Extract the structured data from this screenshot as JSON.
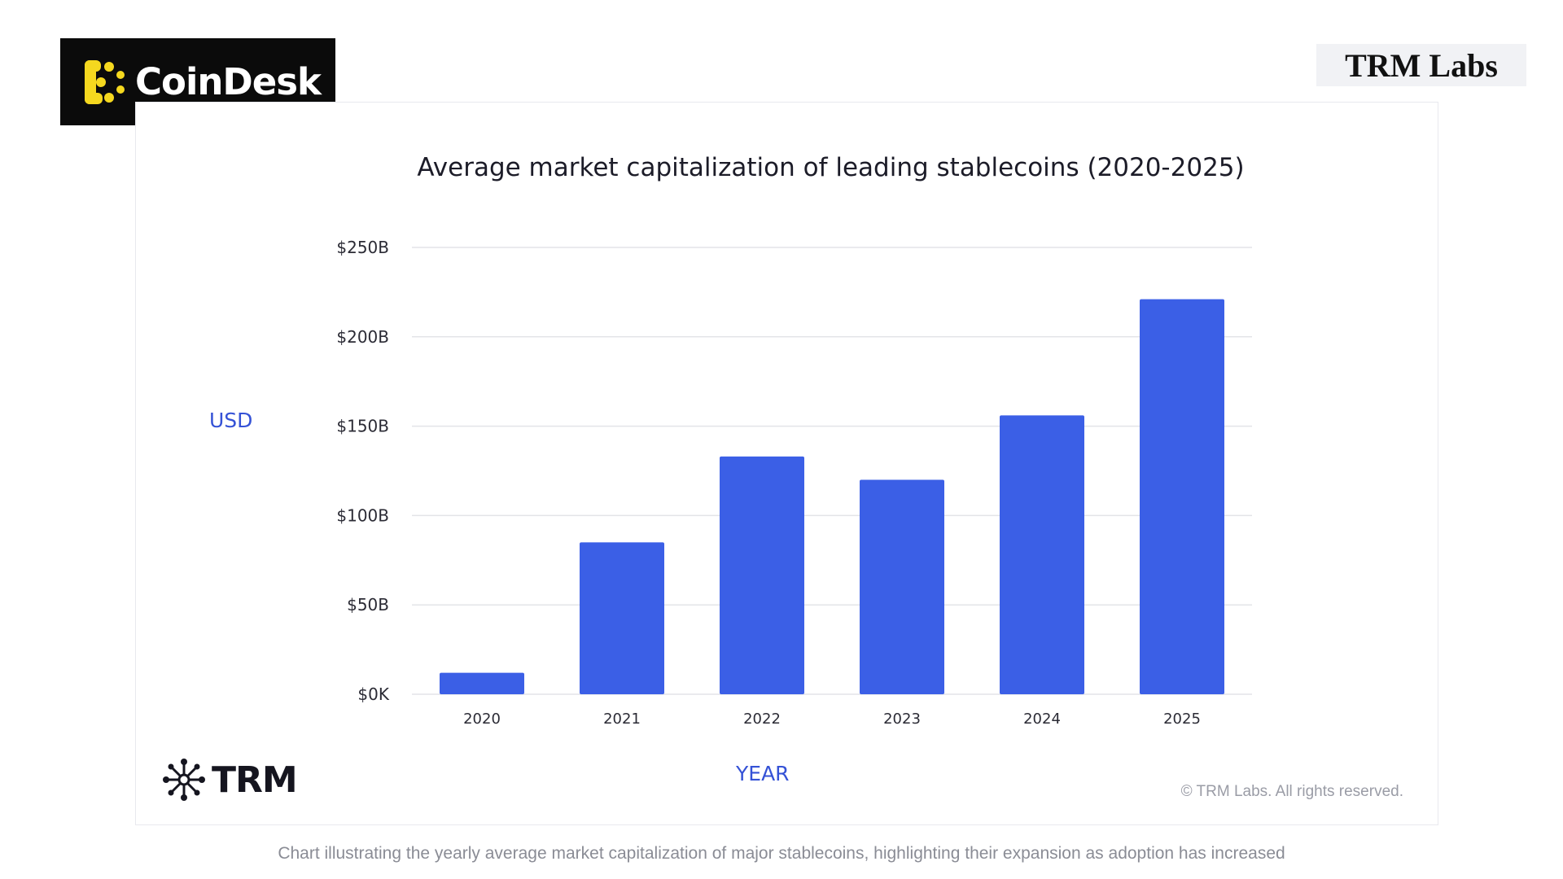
{
  "header": {
    "brand": "CoinDesk",
    "partner": "TRM Labs"
  },
  "footer": {
    "trm_brand": "TRM",
    "copyright": "© TRM Labs. All rights reserved.",
    "caption": "Chart illustrating the yearly average market capitalization of major stablecoins, highlighting their expansion as adoption has increased"
  },
  "colors": {
    "bar": "#3b5fe6",
    "axis_label": "#3552d6",
    "grid": "#e3e4e8"
  },
  "chart_data": {
    "type": "bar",
    "title": "Average market capitalization of leading stablecoins (2020-2025)",
    "xlabel": "YEAR",
    "ylabel": "USD",
    "categories": [
      "2020",
      "2021",
      "2022",
      "2023",
      "2024",
      "2025"
    ],
    "values": [
      12,
      85,
      133,
      120,
      156,
      221
    ],
    "unit": "billion USD",
    "ylim": [
      0,
      250
    ],
    "yticks": [
      0,
      50,
      100,
      150,
      200,
      250
    ],
    "ytick_labels": [
      "$0K",
      "$50B",
      "$100B",
      "$150B",
      "$200B",
      "$250B"
    ],
    "grid": true,
    "legend": "none"
  }
}
